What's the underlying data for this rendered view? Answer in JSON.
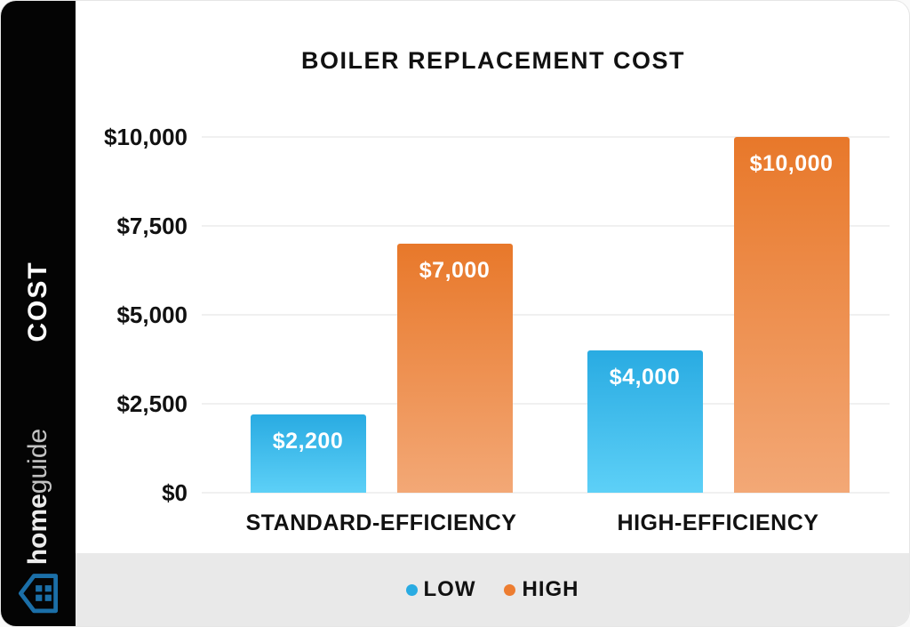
{
  "sidebar": {
    "axis_label": "COST",
    "logo": {
      "home": "home",
      "guide": "guide",
      "icon_color": "#1B6FA8"
    }
  },
  "chart_data": {
    "type": "bar",
    "title": "BOILER REPLACEMENT COST",
    "categories": [
      "STANDARD-EFFICIENCY",
      "HIGH-EFFICIENCY"
    ],
    "series": [
      {
        "name": "LOW",
        "values": [
          2200,
          4000
        ],
        "labels": [
          "$2,200",
          "$4,000"
        ],
        "color_top": "#29ABE2",
        "color_bottom": "#5DD0F7"
      },
      {
        "name": "HIGH",
        "values": [
          7000,
          10000
        ],
        "labels": [
          "$7,000",
          "$10,000"
        ],
        "color_top": "#E8782A",
        "color_bottom": "#F3A876"
      }
    ],
    "ylabel": "COST",
    "ylim": [
      0,
      10000
    ],
    "yticks": [
      0,
      2500,
      5000,
      7500,
      10000
    ],
    "ytick_labels": [
      "$0",
      "$2,500",
      "$5,000",
      "$7,500",
      "$10,000"
    ],
    "grid": true,
    "legend": {
      "position": "bottom",
      "items": [
        {
          "label": "LOW",
          "color": "#29ABE2"
        },
        {
          "label": "HIGH",
          "color": "#ED7D31"
        }
      ]
    }
  }
}
